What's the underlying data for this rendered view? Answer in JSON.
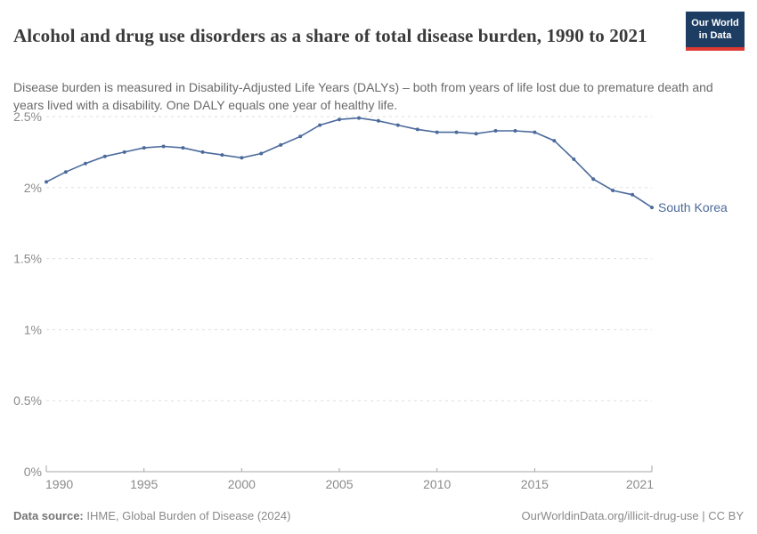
{
  "header": {
    "title": "Alcohol and drug use disorders as a share of total disease burden, 1990 to 2021",
    "subtitle": "Disease burden is measured in Disability-Adjusted Life Years (DALYs) – both from years of life lost due to premature death and years lived with a disability. One DALY equals one year of healthy life.",
    "logo": {
      "line1": "Our World",
      "line2": "in Data"
    }
  },
  "footer": {
    "source_label": "Data source:",
    "source_text": " IHME, Global Burden of Disease (2024)",
    "credit": "OurWorldinData.org/illicit-drug-use | CC BY"
  },
  "colors": {
    "series_blue": "#4c6a9c",
    "logo_navy": "#1d3d63",
    "logo_red": "#dd3a33",
    "grid_gray": "#dddddd",
    "axis_gray": "#a5a5a5",
    "tick_label_gray": "#8b8b8b",
    "title_gray": "#3a3a3a",
    "subtitle_gray": "#6a6a6a"
  },
  "chart_data": {
    "type": "line",
    "title": "Alcohol and drug use disorders as a share of total disease burden",
    "xlabel": "",
    "ylabel": "",
    "xlim": [
      1990,
      2021
    ],
    "ylim": [
      0,
      2.5
    ],
    "grid": "horizontal-dashed",
    "legend_position": "end-of-line-label",
    "x_ticks": [
      1990,
      1995,
      2000,
      2005,
      2010,
      2015,
      2021
    ],
    "y_ticks": [
      0,
      0.5,
      1,
      1.5,
      2,
      2.5
    ],
    "y_tick_labels": [
      "0%",
      "0.5%",
      "1%",
      "1.5%",
      "2%",
      "2.5%"
    ],
    "unit": "% of total DALYs",
    "series": [
      {
        "name": "South Korea",
        "color": "#4c6a9c",
        "x": [
          1990,
          1991,
          1992,
          1993,
          1994,
          1995,
          1996,
          1997,
          1998,
          1999,
          2000,
          2001,
          2002,
          2003,
          2004,
          2005,
          2006,
          2007,
          2008,
          2009,
          2010,
          2011,
          2012,
          2013,
          2014,
          2015,
          2016,
          2017,
          2018,
          2019,
          2020,
          2021
        ],
        "values": [
          2.04,
          2.11,
          2.17,
          2.22,
          2.25,
          2.28,
          2.29,
          2.28,
          2.25,
          2.23,
          2.21,
          2.24,
          2.3,
          2.36,
          2.44,
          2.48,
          2.49,
          2.47,
          2.44,
          2.41,
          2.39,
          2.39,
          2.38,
          2.4,
          2.4,
          2.39,
          2.33,
          2.2,
          2.06,
          1.98,
          1.95,
          1.86
        ]
      }
    ]
  }
}
